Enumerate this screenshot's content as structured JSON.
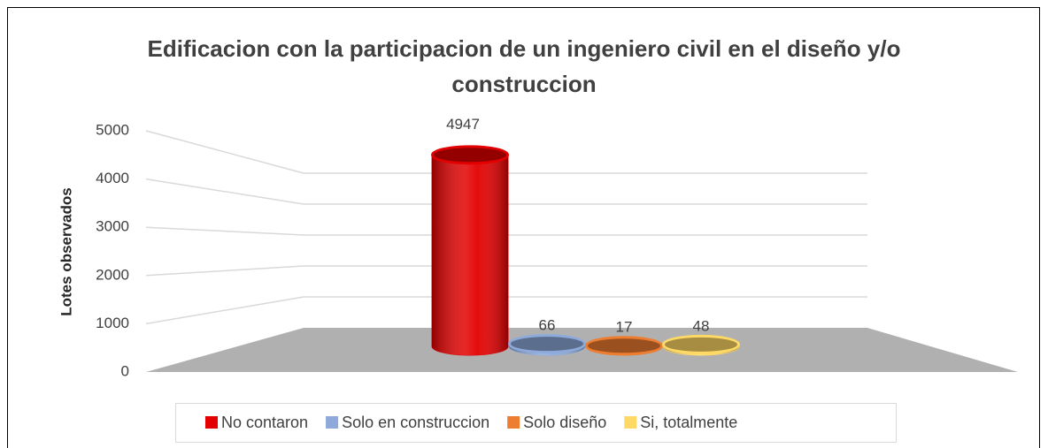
{
  "chart_data": {
    "type": "bar3d",
    "title": "Edificacion con la participacion de un ingeniero civil en el diseño y/o construccion",
    "title_lines": [
      "Edificacion con la participacion de un ingeniero civil en el diseño y/o",
      "construccion"
    ],
    "y_label": "Lotes observados",
    "series": [
      {
        "name": "No contaron",
        "color": "#e30000",
        "values": [
          4947
        ]
      },
      {
        "name": "Solo en construccion",
        "color": "#8eaadb",
        "values": [
          66
        ]
      },
      {
        "name": "Solo diseño",
        "color": "#ed7d31",
        "values": [
          17
        ]
      },
      {
        "name": "Si, totalmente",
        "color": "#ffd966",
        "values": [
          48
        ]
      }
    ],
    "ylim": [
      0,
      5000
    ],
    "yticks": [
      0,
      1000,
      2000,
      3000,
      4000,
      5000
    ],
    "grid": true,
    "legend": "bottom"
  }
}
